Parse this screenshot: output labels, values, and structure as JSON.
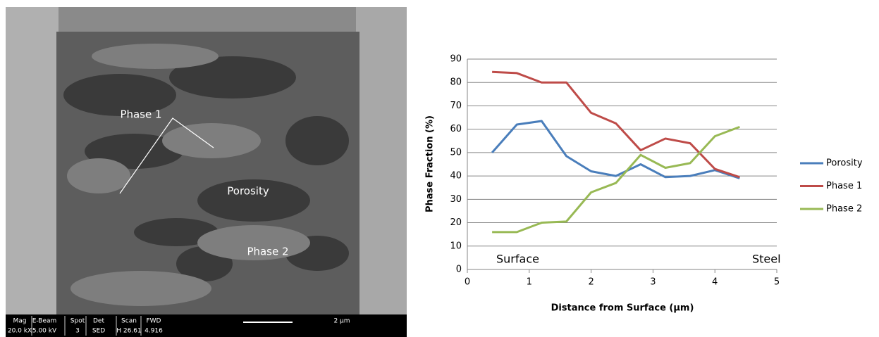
{
  "sem_image": {
    "labels": [
      "Phase 1",
      "Porosity",
      "Phase 2"
    ],
    "info_bar": [
      [
        "Mag",
        "20.0 kX"
      ],
      [
        "E-Beam",
        "5.00 kV"
      ],
      [
        "Spot",
        "3"
      ],
      [
        "Det",
        "SED"
      ],
      [
        "Scan",
        "H 26.61"
      ],
      [
        "FWD",
        "4.916"
      ]
    ],
    "scale_bar": "2 µm"
  },
  "chart_data": {
    "type": "line",
    "x": [
      0.4,
      0.8,
      1.2,
      1.6,
      2.0,
      2.4,
      2.8,
      3.2,
      3.6,
      4.0,
      4.4
    ],
    "series": [
      {
        "name": "Porosity",
        "color": "#4a7ebb",
        "values": [
          50,
          62,
          63.5,
          48.5,
          42,
          40,
          45,
          39.5,
          40,
          42.5,
          39
        ]
      },
      {
        "name": "Phase 1",
        "color": "#be4b48",
        "values": [
          84.5,
          84,
          80,
          80,
          67,
          62.5,
          51,
          56,
          54,
          43,
          39.5
        ]
      },
      {
        "name": "Phase 2",
        "color": "#98b954",
        "values": [
          16,
          16,
          20,
          20.5,
          33,
          37,
          49,
          43.5,
          45.5,
          57,
          61
        ]
      }
    ],
    "xlabel": "Distance from Surface (µm)",
    "ylabel": "Phase Fraction (%)",
    "xlim": [
      0,
      5
    ],
    "xticks": [
      0,
      1,
      2,
      3,
      4,
      5
    ],
    "ylim": [
      0,
      90
    ],
    "yticks": [
      0,
      10,
      20,
      30,
      40,
      50,
      60,
      70,
      80,
      90
    ],
    "grid": true,
    "legend": "right",
    "annotations": [
      "Surface",
      "Steel"
    ]
  }
}
